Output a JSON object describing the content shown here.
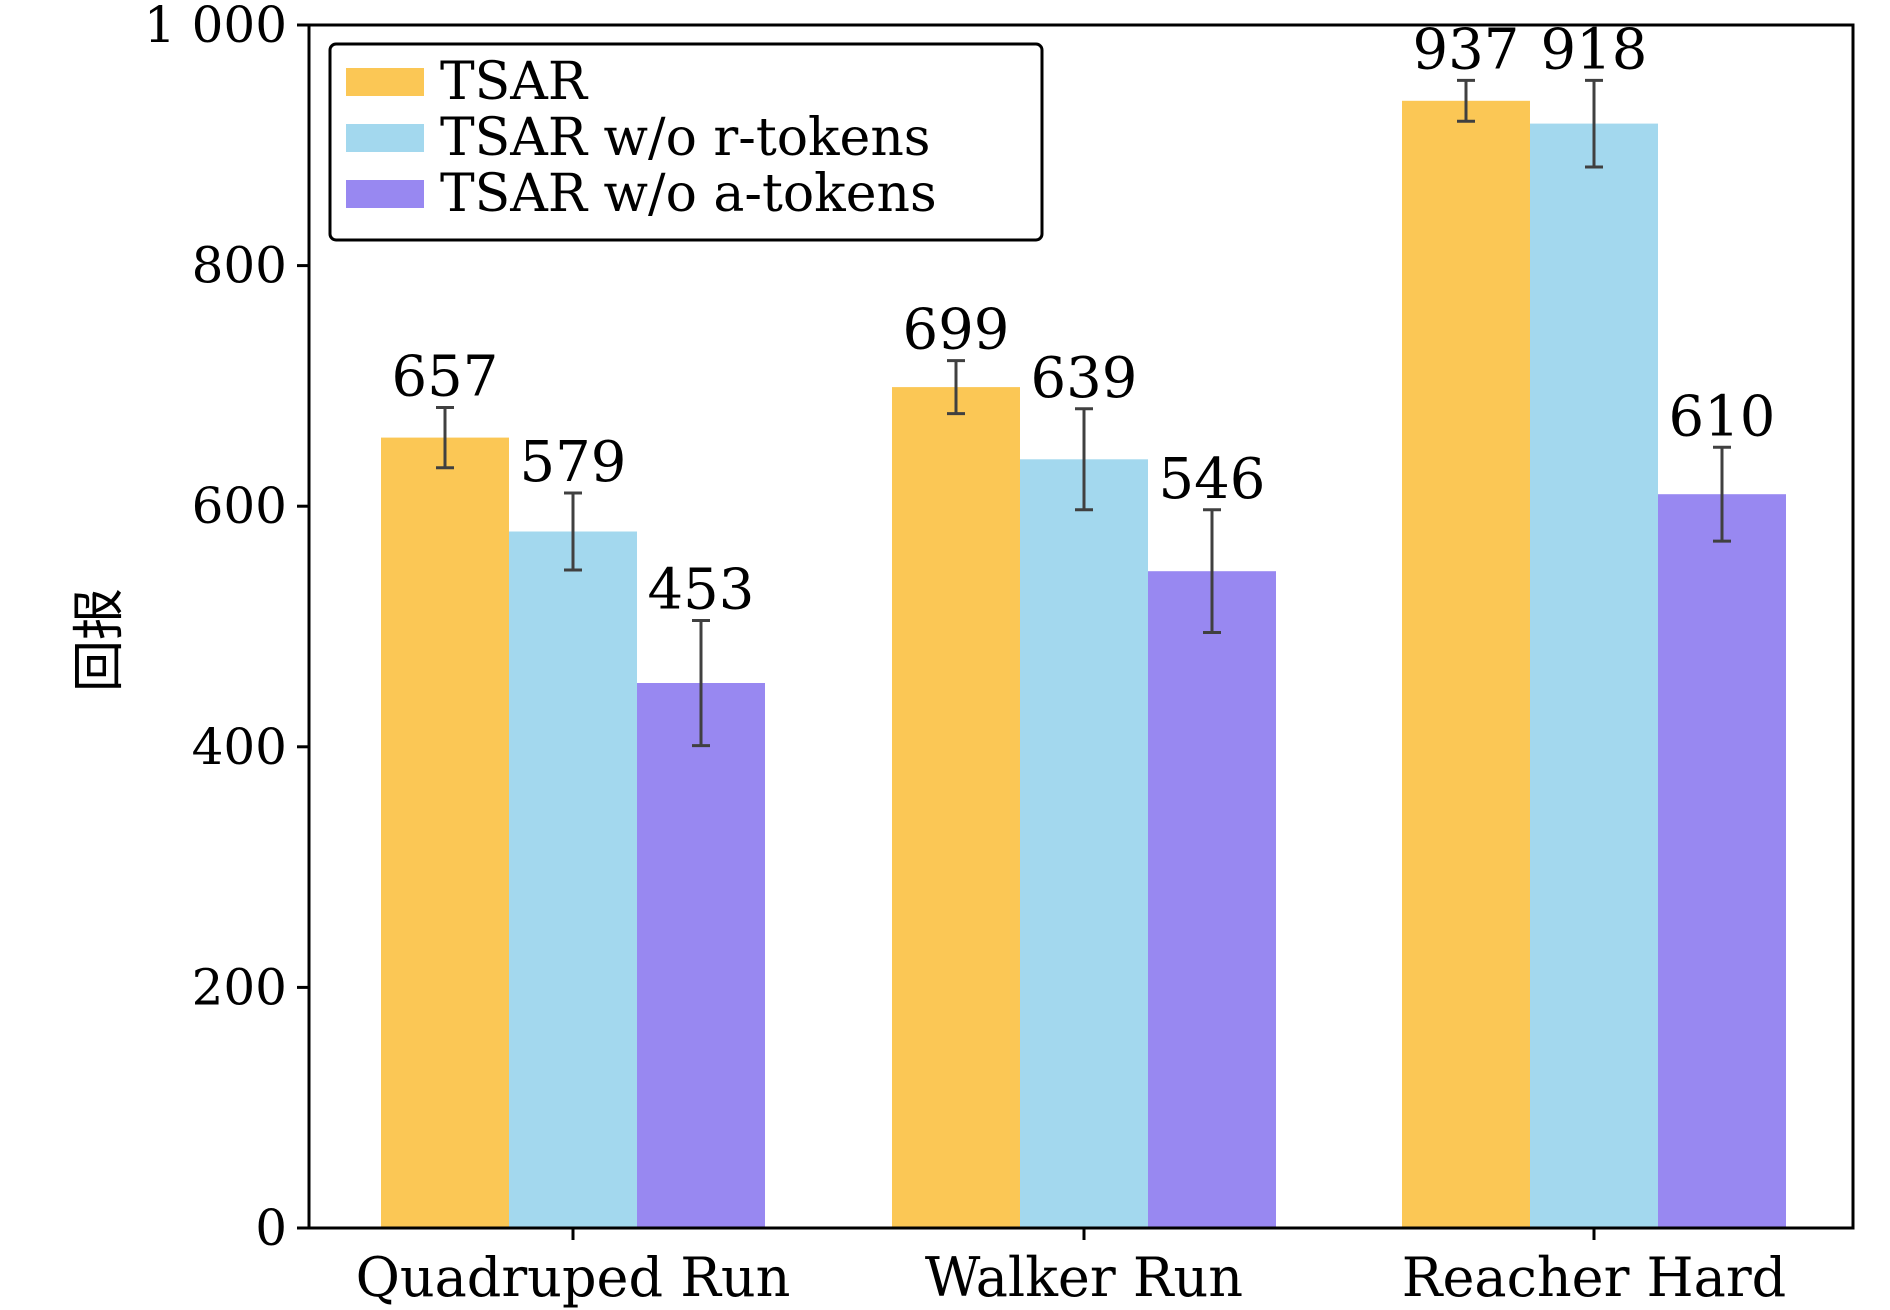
{
  "chart_data": {
    "type": "bar",
    "categories": [
      "Quadruped Run",
      "Walker Run",
      "Reacher Hard"
    ],
    "series": [
      {
        "name": "TSAR",
        "values": [
          657,
          699,
          937
        ],
        "errors": [
          25,
          22,
          17
        ],
        "color": "#FBC755"
      },
      {
        "name": "TSAR w/o r-tokens",
        "values": [
          579,
          639,
          918
        ],
        "errors": [
          32,
          42,
          36
        ],
        "color": "#A3D8EE"
      },
      {
        "name": "TSAR w/o a-tokens",
        "values": [
          453,
          546,
          610
        ],
        "errors": [
          52,
          51,
          39
        ],
        "color": "#9888F1"
      }
    ],
    "value_labels": [
      [
        "657",
        "699",
        "937"
      ],
      [
        "579",
        "639",
        "918"
      ],
      [
        "453",
        "546",
        "610"
      ]
    ],
    "ylabel": "回报",
    "xlabel": "",
    "title": "",
    "ylim": [
      0,
      1000
    ],
    "yticks": [
      0,
      200,
      400,
      600,
      800,
      1000
    ],
    "ytick_labels": [
      "0",
      "200",
      "400",
      "600",
      "800",
      "1 000"
    ],
    "grid": false,
    "legend_position": "top-left",
    "error_bar_color": "#404040"
  }
}
